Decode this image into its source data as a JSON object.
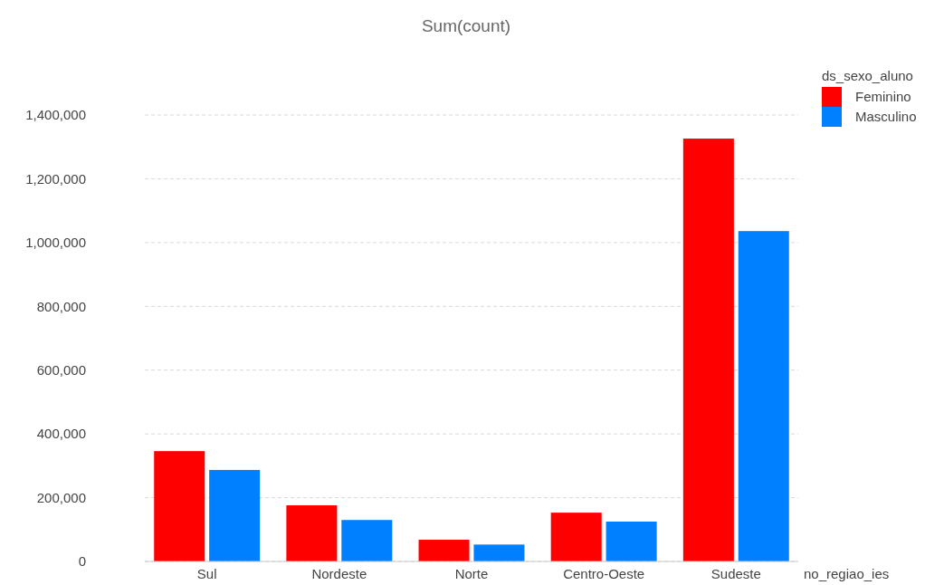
{
  "chart_data": {
    "type": "bar",
    "title": "Sum(count)",
    "xlabel": "no_regiao_ies",
    "legend_title": "ds_sexo_aluno",
    "categories": [
      "Sul",
      "Nordeste",
      "Norte",
      "Centro-Oeste",
      "Sudeste"
    ],
    "series": [
      {
        "name": "Feminino",
        "color": "#ff0000",
        "values": [
          346000,
          176000,
          68000,
          153000,
          1326000
        ]
      },
      {
        "name": "Masculino",
        "color": "#0080ff",
        "values": [
          287000,
          130000,
          53000,
          125000,
          1036000
        ]
      }
    ],
    "ylim": [
      0,
      1400000
    ],
    "yticks": [
      {
        "value": 0,
        "label": "0"
      },
      {
        "value": 200000,
        "label": "200,000"
      },
      {
        "value": 400000,
        "label": "400,000"
      },
      {
        "value": 600000,
        "label": "600,000"
      },
      {
        "value": 800000,
        "label": "800,000"
      },
      {
        "value": 1000000,
        "label": "1,000,000"
      },
      {
        "value": 1200000,
        "label": "1,200,000"
      },
      {
        "value": 1400000,
        "label": "1,400,000"
      }
    ],
    "grid": "y",
    "legend": "top right"
  }
}
